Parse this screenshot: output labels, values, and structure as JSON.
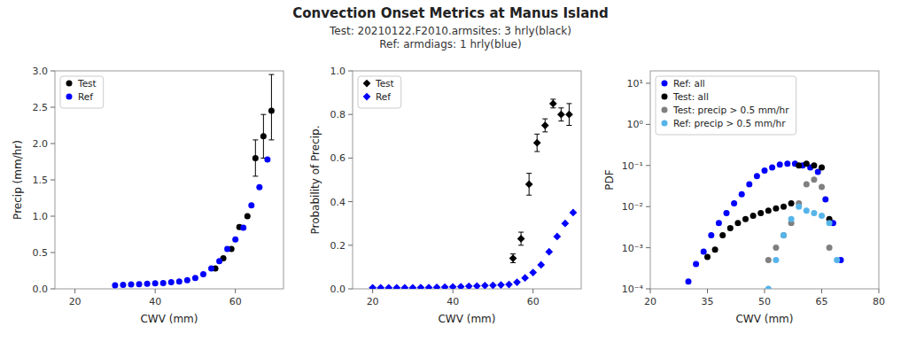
{
  "chart_data": [
    {
      "type": "scatter",
      "title": "Convection Onset Metrics at Manus Island",
      "subtitle": "Test: 20210122.F2010.armsites:  3 hrly(black)\nRef: armdiags:  1 hrly(blue)",
      "xlabel": "CWV (mm)",
      "ylabel": "Precip (mm/hr)",
      "xlim": [
        15,
        72
      ],
      "ylim": [
        0,
        3.0
      ],
      "xticks": [
        20,
        40,
        60
      ],
      "yticks": [
        {
          "value": 0.0,
          "label": "0.0"
        },
        {
          "value": 0.5,
          "label": "0.5"
        },
        {
          "value": 1.0,
          "label": "1.0"
        },
        {
          "value": 1.5,
          "label": "1.5"
        },
        {
          "value": 2.0,
          "label": "2.0"
        },
        {
          "value": 2.5,
          "label": "2.5"
        },
        {
          "value": 3.0,
          "label": "3.0"
        }
      ],
      "grid": false,
      "legend": "upper left",
      "marker": "circle",
      "series": [
        {
          "name": "Test",
          "color": "#000000",
          "x": [
            55,
            57,
            59,
            61,
            63,
            65,
            67,
            69
          ],
          "values": [
            0.28,
            0.42,
            0.55,
            0.85,
            1.0,
            1.8,
            2.1,
            2.45
          ],
          "error_low": [
            0.0,
            0.0,
            0.0,
            0.0,
            0.0,
            0.25,
            0.3,
            0.4
          ],
          "error_high": [
            0.0,
            0.0,
            0.0,
            0.0,
            0.0,
            0.25,
            0.3,
            0.5
          ]
        },
        {
          "name": "Ref",
          "color": "#0000FF",
          "x": [
            30,
            32,
            34,
            36,
            38,
            40,
            42,
            44,
            46,
            48,
            50,
            52,
            54,
            56,
            58,
            60,
            62,
            64,
            66,
            68
          ],
          "values": [
            0.05,
            0.055,
            0.06,
            0.065,
            0.07,
            0.075,
            0.08,
            0.09,
            0.1,
            0.12,
            0.15,
            0.2,
            0.28,
            0.38,
            0.55,
            0.68,
            0.84,
            1.15,
            1.4,
            1.78
          ]
        }
      ]
    },
    {
      "type": "scatter",
      "xlabel": "CWV (mm)",
      "ylabel": "Probability of Precip.",
      "xlim": [
        15,
        72
      ],
      "ylim": [
        0,
        1.0
      ],
      "xticks": [
        20,
        40,
        60
      ],
      "yticks": [
        {
          "value": 0.0,
          "label": "0.0"
        },
        {
          "value": 0.2,
          "label": "0.2"
        },
        {
          "value": 0.4,
          "label": "0.4"
        },
        {
          "value": 0.6,
          "label": "0.6"
        },
        {
          "value": 0.8,
          "label": "0.8"
        },
        {
          "value": 1.0,
          "label": "1.0"
        }
      ],
      "grid": false,
      "legend": "upper left",
      "marker": "diamond",
      "series": [
        {
          "name": "Test",
          "color": "#000000",
          "x": [
            55,
            57,
            59,
            61,
            63,
            65,
            67,
            69
          ],
          "values": [
            0.14,
            0.23,
            0.48,
            0.67,
            0.75,
            0.85,
            0.8,
            0.8
          ],
          "error_low": [
            0.02,
            0.03,
            0.05,
            0.04,
            0.03,
            0.02,
            0.03,
            0.05
          ],
          "error_high": [
            0.02,
            0.03,
            0.05,
            0.04,
            0.03,
            0.02,
            0.03,
            0.05
          ]
        },
        {
          "name": "Ref",
          "color": "#0000FF",
          "x": [
            20,
            22,
            24,
            26,
            28,
            30,
            32,
            34,
            36,
            38,
            40,
            42,
            44,
            46,
            48,
            50,
            52,
            54,
            56,
            58,
            60,
            62,
            64,
            66,
            68,
            70
          ],
          "values": [
            0.005,
            0.005,
            0.005,
            0.005,
            0.005,
            0.005,
            0.006,
            0.006,
            0.007,
            0.008,
            0.009,
            0.01,
            0.012,
            0.013,
            0.015,
            0.016,
            0.018,
            0.02,
            0.03,
            0.05,
            0.075,
            0.11,
            0.17,
            0.24,
            0.3,
            0.35
          ]
        }
      ]
    },
    {
      "type": "scatter",
      "xlabel": "CWV (mm)",
      "ylabel": "PDF",
      "log": "y",
      "xlim": [
        20,
        80
      ],
      "ylim": [
        0.0001,
        20
      ],
      "xticks": [
        20,
        35,
        50,
        65,
        80
      ],
      "yticks": [
        {
          "value": 0.0001,
          "label": "10⁻⁴"
        },
        {
          "value": 0.001,
          "label": "10⁻³"
        },
        {
          "value": 0.01,
          "label": "10⁻²"
        },
        {
          "value": 0.1,
          "label": "10⁻¹"
        },
        {
          "value": 1,
          "label": "10⁰"
        },
        {
          "value": 10,
          "label": "10¹"
        }
      ],
      "grid": false,
      "legend": "upper left",
      "marker": "circle",
      "series": [
        {
          "name": "Ref: all",
          "color": "#0000FF",
          "x": [
            30,
            32,
            34,
            36,
            38,
            40,
            42,
            44,
            46,
            48,
            50,
            52,
            54,
            56,
            58,
            60,
            62,
            64,
            66,
            68,
            70
          ],
          "values": [
            0.00015,
            0.0004,
            0.0008,
            0.002,
            0.004,
            0.007,
            0.012,
            0.02,
            0.035,
            0.055,
            0.075,
            0.09,
            0.105,
            0.11,
            0.11,
            0.1,
            0.09,
            0.07,
            0.015,
            0.004,
            0.0005
          ]
        },
        {
          "name": "Test: all",
          "color": "#000000",
          "x": [
            35,
            37,
            39,
            41,
            43,
            45,
            47,
            49,
            51,
            53,
            55,
            57,
            59,
            61,
            63,
            65,
            67
          ],
          "values": [
            0.0006,
            0.0009,
            0.002,
            0.003,
            0.004,
            0.005,
            0.006,
            0.007,
            0.008,
            0.009,
            0.01,
            0.012,
            0.1,
            0.11,
            0.1,
            0.09,
            0.005
          ]
        },
        {
          "name": "Test: precip > 0.5 mm/hr",
          "color": "#808080",
          "x": [
            51,
            53,
            55,
            57,
            59,
            61,
            63,
            65,
            67
          ],
          "values": [
            0.0005,
            0.001,
            0.002,
            0.004,
            0.012,
            0.035,
            0.045,
            0.03,
            0.001
          ]
        },
        {
          "name": "Ref: precip > 0.5 mm/hr",
          "color": "#56B4E9",
          "x": [
            51,
            53,
            55,
            57,
            59,
            61,
            63,
            65,
            67,
            69
          ],
          "values": [
            0.0001,
            0.0005,
            0.002,
            0.005,
            0.01,
            0.008,
            0.007,
            0.006,
            0.004,
            0.0005
          ]
        }
      ]
    }
  ]
}
